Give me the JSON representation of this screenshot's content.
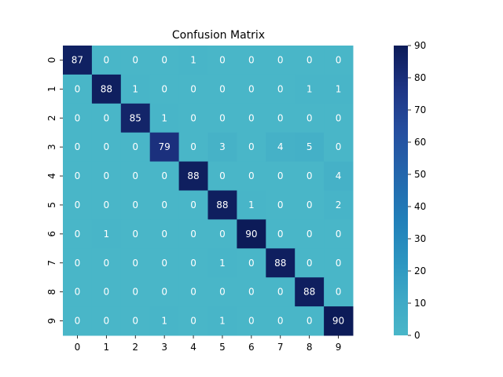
{
  "chart_data": {
    "type": "heatmap",
    "title": "Confusion Matrix",
    "xlabel": "",
    "ylabel": "",
    "x_categories": [
      "0",
      "1",
      "2",
      "3",
      "4",
      "5",
      "6",
      "7",
      "8",
      "9"
    ],
    "y_categories": [
      "0",
      "1",
      "2",
      "3",
      "4",
      "5",
      "6",
      "7",
      "8",
      "9"
    ],
    "values": [
      [
        87,
        0,
        0,
        0,
        1,
        0,
        0,
        0,
        0,
        0
      ],
      [
        0,
        88,
        1,
        0,
        0,
        0,
        0,
        0,
        1,
        1
      ],
      [
        0,
        0,
        85,
        1,
        0,
        0,
        0,
        0,
        0,
        0
      ],
      [
        0,
        0,
        0,
        79,
        0,
        3,
        0,
        4,
        5,
        0
      ],
      [
        0,
        0,
        0,
        0,
        88,
        0,
        0,
        0,
        0,
        4
      ],
      [
        0,
        0,
        0,
        0,
        0,
        88,
        1,
        0,
        0,
        2
      ],
      [
        0,
        1,
        0,
        0,
        0,
        0,
        90,
        0,
        0,
        0
      ],
      [
        0,
        0,
        0,
        0,
        0,
        1,
        0,
        88,
        0,
        0
      ],
      [
        0,
        0,
        0,
        0,
        0,
        0,
        0,
        0,
        88,
        0
      ],
      [
        0,
        0,
        0,
        1,
        0,
        1,
        0,
        0,
        0,
        90
      ]
    ],
    "colorbar": {
      "range": [
        0,
        90
      ],
      "ticks": [
        "0",
        "10",
        "20",
        "30",
        "40",
        "50",
        "60",
        "70",
        "80",
        "90"
      ],
      "colormap": "YlGnBu (teal to dark navy)",
      "low_color": "#49b6c8",
      "high_color": "#0c1b58"
    },
    "annotated": true,
    "grid": false
  }
}
